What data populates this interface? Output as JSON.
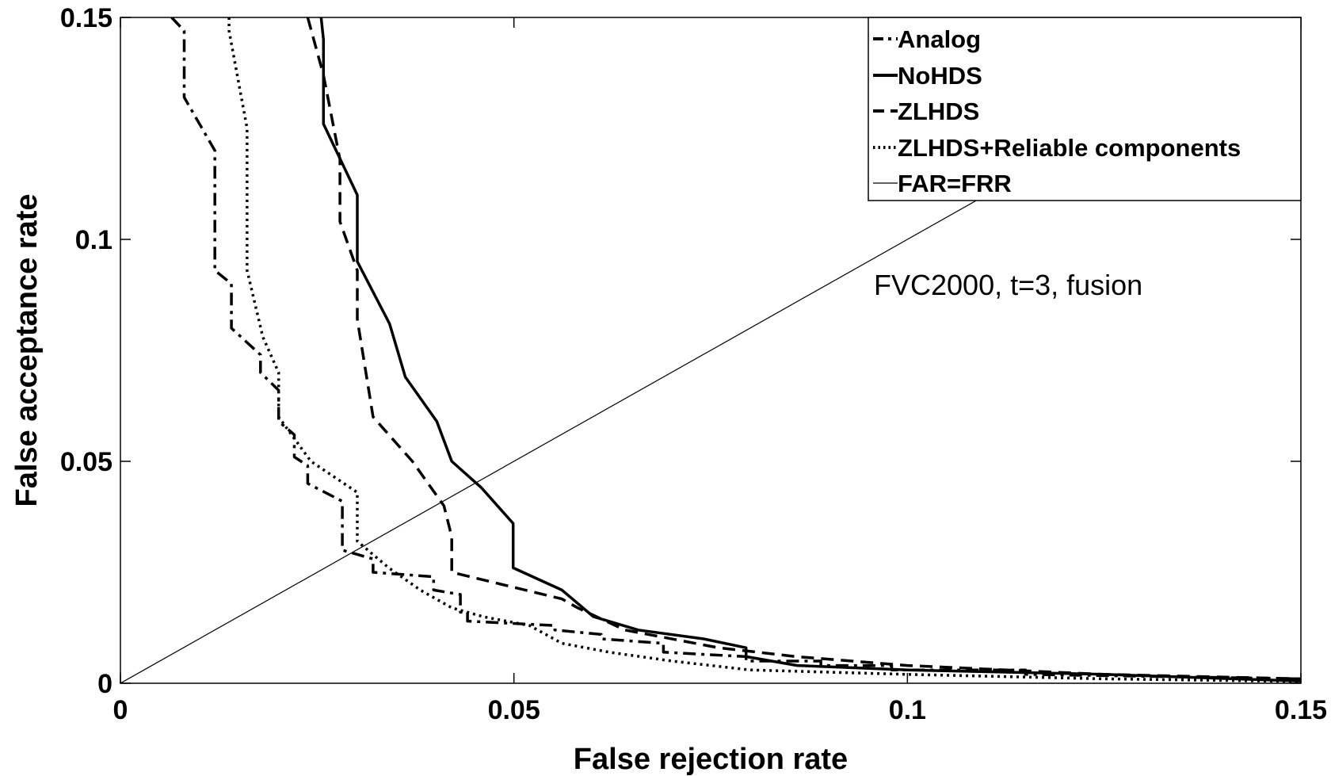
{
  "chart_data": {
    "type": "line",
    "title": "",
    "xlabel": "False rejection rate",
    "ylabel": "False acceptance rate",
    "xlim": [
      0,
      0.15
    ],
    "ylim": [
      0,
      0.15
    ],
    "xticks": [
      0,
      0.05,
      0.1,
      0.15
    ],
    "yticks": [
      0,
      0.05,
      0.1,
      0.15
    ],
    "xtick_labels": [
      "0",
      "0.05",
      "0.1",
      "0.15"
    ],
    "ytick_labels": [
      "0",
      "0.05",
      "0.1",
      "0.15"
    ],
    "grid": false,
    "legend_position": "top-right",
    "annotation": "FVC2000, t=3, fusion",
    "series": [
      {
        "name": "Analog",
        "style": "dashdot",
        "x": [
          0.0065,
          0.0081,
          0.0081,
          0.012,
          0.012,
          0.0141,
          0.0141,
          0.0178,
          0.0178,
          0.0201,
          0.0201,
          0.0221,
          0.0221,
          0.0238,
          0.0238,
          0.0282,
          0.0282,
          0.0321,
          0.0321,
          0.0398,
          0.0398,
          0.0432,
          0.0432,
          0.0441,
          0.0441,
          0.0552,
          0.0552,
          0.0611,
          0.0611,
          0.069,
          0.069,
          0.0795,
          0.0795,
          0.089,
          0.089,
          0.098,
          0.098,
          0.115,
          0.115,
          0.15
        ],
        "y": [
          0.15,
          0.147,
          0.132,
          0.12,
          0.093,
          0.09,
          0.08,
          0.074,
          0.07,
          0.066,
          0.059,
          0.056,
          0.051,
          0.049,
          0.045,
          0.041,
          0.03,
          0.028,
          0.025,
          0.024,
          0.021,
          0.02,
          0.016,
          0.016,
          0.014,
          0.013,
          0.012,
          0.011,
          0.01,
          0.009,
          0.007,
          0.006,
          0.005,
          0.005,
          0.004,
          0.004,
          0.003,
          0.003,
          0.002,
          0.001
        ]
      },
      {
        "name": "NoHDS",
        "style": "solid",
        "x": [
          0.0255,
          0.0258,
          0.0258,
          0.0301,
          0.0301,
          0.0342,
          0.0362,
          0.0402,
          0.0421,
          0.0459,
          0.0499,
          0.0499,
          0.0561,
          0.0601,
          0.0658,
          0.0741,
          0.0795,
          0.0795,
          0.086,
          0.1,
          0.125,
          0.15
        ],
        "y": [
          0.15,
          0.145,
          0.126,
          0.11,
          0.095,
          0.081,
          0.069,
          0.059,
          0.05,
          0.044,
          0.036,
          0.026,
          0.021,
          0.015,
          0.012,
          0.01,
          0.008,
          0.006,
          0.004,
          0.003,
          0.002,
          0.0005
        ]
      },
      {
        "name": "ZLHDS",
        "style": "dashed",
        "x": [
          0.0238,
          0.0258,
          0.0279,
          0.0279,
          0.0301,
          0.0301,
          0.0321,
          0.0371,
          0.0411,
          0.0421,
          0.0421,
          0.0561,
          0.0581,
          0.0641,
          0.076,
          0.0859,
          0.1,
          0.125,
          0.15
        ],
        "y": [
          0.15,
          0.137,
          0.118,
          0.104,
          0.093,
          0.082,
          0.06,
          0.05,
          0.04,
          0.033,
          0.025,
          0.019,
          0.017,
          0.012,
          0.008,
          0.006,
          0.004,
          0.002,
          0.001
        ]
      },
      {
        "name": "ZLHDS+Reliable components",
        "style": "dotted",
        "x": [
          0.0138,
          0.0138,
          0.0161,
          0.0161,
          0.0181,
          0.0201,
          0.0201,
          0.0242,
          0.0301,
          0.0301,
          0.0341,
          0.0381,
          0.0421,
          0.0461,
          0.052,
          0.0561,
          0.0621,
          0.0701,
          0.08,
          0.1,
          0.125,
          0.15
        ],
        "y": [
          0.15,
          0.147,
          0.125,
          0.093,
          0.078,
          0.07,
          0.06,
          0.05,
          0.043,
          0.032,
          0.026,
          0.021,
          0.017,
          0.015,
          0.013,
          0.009,
          0.007,
          0.005,
          0.003,
          0.002,
          0.001,
          0.0004
        ]
      },
      {
        "name": "FAR=FRR",
        "style": "thin",
        "x": [
          0,
          0.15
        ],
        "y": [
          0,
          0.15
        ]
      }
    ]
  }
}
